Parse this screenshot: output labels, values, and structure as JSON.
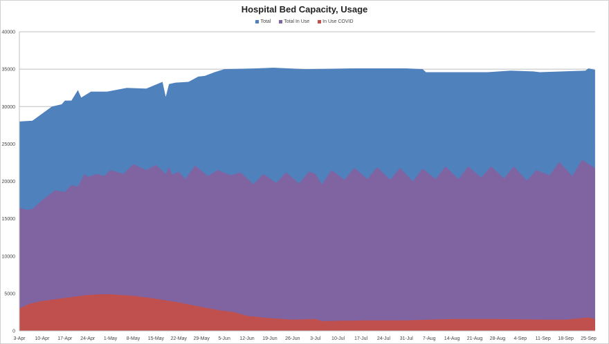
{
  "chart_data": {
    "type": "area",
    "title": "Hospital Bed Capacity, Usage",
    "xlabel": "",
    "ylabel": "",
    "ylim": [
      0,
      40000
    ],
    "yticks": [
      "0",
      "5000",
      "10000",
      "15000",
      "20000",
      "25000",
      "30000",
      "35000",
      "40000"
    ],
    "xticks": [
      "3-Apr",
      "10-Apr",
      "17-Apr",
      "24-Apr",
      "1-May",
      "8-May",
      "15-May",
      "22-May",
      "29-May",
      "5-Jun",
      "12-Jun",
      "19-Jun",
      "26-Jun",
      "3-Jul",
      "10-Jul",
      "17-Jul",
      "24-Jul",
      "31-Jul",
      "7-Aug",
      "14-Aug",
      "21-Aug",
      "28-Aug",
      "4-Sep",
      "11-Sep",
      "18-Sep",
      "25-Sep"
    ],
    "x_end": "27-Sep",
    "grid": true,
    "legend_position": "top",
    "series": [
      {
        "name": "Total",
        "color": "#4f81bd",
        "points": [
          [
            "3-Apr",
            28000
          ],
          [
            "7-Apr",
            28100
          ],
          [
            "13-Apr",
            30000
          ],
          [
            "16-Apr",
            30300
          ],
          [
            "17-Apr",
            30800
          ],
          [
            "19-Apr",
            30800
          ],
          [
            "21-Apr",
            32200
          ],
          [
            "22-Apr",
            31200
          ],
          [
            "25-Apr",
            32000
          ],
          [
            "30-Apr",
            32000
          ],
          [
            "6-May",
            32500
          ],
          [
            "12-May",
            32400
          ],
          [
            "17-May",
            33300
          ],
          [
            "18-May",
            31300
          ],
          [
            "19-May",
            33000
          ],
          [
            "21-May",
            33200
          ],
          [
            "25-May",
            33300
          ],
          [
            "28-May",
            34000
          ],
          [
            "30-May",
            34100
          ],
          [
            "2-Jun",
            34600
          ],
          [
            "5-Jun",
            35000
          ],
          [
            "15-Jun",
            35100
          ],
          [
            "20-Jun",
            35200
          ],
          [
            "30-Jun",
            35000
          ],
          [
            "15-Jul",
            35100
          ],
          [
            "31-Jul",
            35100
          ],
          [
            "5-Aug",
            35000
          ],
          [
            "6-Aug",
            34600
          ],
          [
            "25-Aug",
            34600
          ],
          [
            "1-Sep",
            34800
          ],
          [
            "8-Sep",
            34700
          ],
          [
            "10-Sep",
            34600
          ],
          [
            "24-Sep",
            34800
          ],
          [
            "25-Sep",
            35100
          ],
          [
            "27-Sep",
            34900
          ]
        ]
      },
      {
        "name": "Total In Use",
        "color": "#8064a2",
        "points": [
          [
            "3-Apr",
            16500
          ],
          [
            "5-Apr",
            16200
          ],
          [
            "7-Apr",
            16300
          ],
          [
            "10-Apr",
            17500
          ],
          [
            "14-Apr",
            18800
          ],
          [
            "17-Apr",
            18600
          ],
          [
            "19-Apr",
            19500
          ],
          [
            "21-Apr",
            19300
          ],
          [
            "23-Apr",
            21000
          ],
          [
            "24-Apr",
            20600
          ],
          [
            "27-Apr",
            21000
          ],
          [
            "29-Apr",
            20700
          ],
          [
            "1-May",
            21500
          ],
          [
            "5-May",
            21000
          ],
          [
            "8-May",
            22300
          ],
          [
            "12-May",
            21500
          ],
          [
            "15-May",
            22200
          ],
          [
            "18-May",
            21000
          ],
          [
            "19-May",
            21900
          ],
          [
            "20-May",
            20900
          ],
          [
            "22-May",
            21300
          ],
          [
            "24-May",
            20300
          ],
          [
            "27-May",
            22100
          ],
          [
            "31-May",
            20700
          ],
          [
            "3-Jun",
            21500
          ],
          [
            "7-Jun",
            20800
          ],
          [
            "10-Jun",
            21200
          ],
          [
            "14-Jun",
            19600
          ],
          [
            "17-Jun",
            21000
          ],
          [
            "21-Jun",
            19800
          ],
          [
            "24-Jun",
            21200
          ],
          [
            "28-Jun",
            19700
          ],
          [
            "1-Jul",
            21300
          ],
          [
            "3-Jul",
            21000
          ],
          [
            "5-Jul",
            19600
          ],
          [
            "8-Jul",
            21500
          ],
          [
            "12-Jul",
            20200
          ],
          [
            "15-Jul",
            21800
          ],
          [
            "19-Jul",
            20300
          ],
          [
            "22-Jul",
            21900
          ],
          [
            "26-Jul",
            20200
          ],
          [
            "29-Jul",
            21800
          ],
          [
            "2-Aug",
            20000
          ],
          [
            "5-Aug",
            21700
          ],
          [
            "9-Aug",
            20300
          ],
          [
            "12-Aug",
            22000
          ],
          [
            "16-Aug",
            20300
          ],
          [
            "19-Aug",
            22000
          ],
          [
            "23-Aug",
            20500
          ],
          [
            "26-Aug",
            22000
          ],
          [
            "30-Aug",
            20400
          ],
          [
            "2-Sep",
            22000
          ],
          [
            "6-Sep",
            20100
          ],
          [
            "9-Sep",
            21500
          ],
          [
            "13-Sep",
            20800
          ],
          [
            "16-Sep",
            22600
          ],
          [
            "20-Sep",
            20700
          ],
          [
            "23-Sep",
            22900
          ],
          [
            "25-Sep",
            22300
          ],
          [
            "27-Sep",
            21800
          ]
        ]
      },
      {
        "name": "In Use COVID",
        "color": "#c0504d",
        "points": [
          [
            "3-Apr",
            3000
          ],
          [
            "6-Apr",
            3600
          ],
          [
            "10-Apr",
            4000
          ],
          [
            "17-Apr",
            4400
          ],
          [
            "24-Apr",
            4800
          ],
          [
            "28-Apr",
            4900
          ],
          [
            "1-May",
            4900
          ],
          [
            "8-May",
            4700
          ],
          [
            "15-May",
            4300
          ],
          [
            "22-May",
            3800
          ],
          [
            "29-May",
            3200
          ],
          [
            "3-Jun",
            2800
          ],
          [
            "8-Jun",
            2500
          ],
          [
            "12-Jun",
            2000
          ],
          [
            "19-Jun",
            1700
          ],
          [
            "26-Jun",
            1500
          ],
          [
            "3-Jul",
            1600
          ],
          [
            "5-Jul",
            1300
          ],
          [
            "17-Jul",
            1400
          ],
          [
            "31-Jul",
            1400
          ],
          [
            "14-Aug",
            1600
          ],
          [
            "28-Aug",
            1600
          ],
          [
            "11-Sep",
            1500
          ],
          [
            "18-Sep",
            1500
          ],
          [
            "25-Sep",
            1800
          ],
          [
            "27-Sep",
            1600
          ]
        ]
      }
    ]
  }
}
